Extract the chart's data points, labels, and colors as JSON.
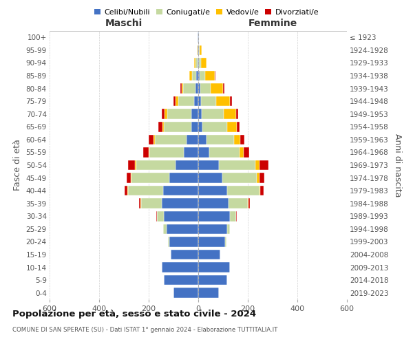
{
  "age_groups": [
    "0-4",
    "5-9",
    "10-14",
    "15-19",
    "20-24",
    "25-29",
    "30-34",
    "35-39",
    "40-44",
    "45-49",
    "50-54",
    "55-59",
    "60-64",
    "65-69",
    "70-74",
    "75-79",
    "80-84",
    "85-89",
    "90-94",
    "95-99",
    "100+"
  ],
  "birth_years": [
    "2019-2023",
    "2014-2018",
    "2009-2013",
    "2004-2008",
    "1999-2003",
    "1994-1998",
    "1989-1993",
    "1984-1988",
    "1979-1983",
    "1974-1978",
    "1969-1973",
    "1964-1968",
    "1959-1963",
    "1954-1958",
    "1949-1953",
    "1944-1948",
    "1939-1943",
    "1934-1938",
    "1929-1933",
    "1924-1928",
    "≤ 1923"
  ],
  "maschi": {
    "celibi": [
      100,
      138,
      148,
      110,
      118,
      128,
      138,
      148,
      142,
      118,
      92,
      58,
      48,
      28,
      28,
      18,
      12,
      8,
      4,
      2,
      2
    ],
    "coniugati": [
      0,
      0,
      0,
      2,
      5,
      15,
      30,
      82,
      142,
      152,
      158,
      138,
      128,
      112,
      98,
      62,
      48,
      18,
      8,
      2,
      0
    ],
    "vedovi": [
      0,
      0,
      0,
      0,
      0,
      0,
      0,
      2,
      2,
      2,
      5,
      5,
      5,
      5,
      10,
      12,
      8,
      10,
      5,
      2,
      0
    ],
    "divorziati": [
      0,
      0,
      0,
      0,
      0,
      0,
      2,
      8,
      12,
      18,
      28,
      22,
      18,
      15,
      12,
      8,
      5,
      0,
      0,
      0,
      0
    ]
  },
  "femmine": {
    "nubili": [
      82,
      118,
      128,
      88,
      108,
      118,
      128,
      122,
      118,
      98,
      82,
      44,
      32,
      18,
      15,
      10,
      8,
      6,
      4,
      3,
      2
    ],
    "coniugate": [
      0,
      0,
      0,
      2,
      5,
      10,
      25,
      78,
      128,
      138,
      148,
      122,
      112,
      98,
      88,
      62,
      42,
      22,
      8,
      2,
      0
    ],
    "vedove": [
      0,
      0,
      0,
      0,
      0,
      0,
      0,
      2,
      5,
      10,
      18,
      18,
      25,
      40,
      50,
      55,
      50,
      40,
      20,
      8,
      2
    ],
    "divorziate": [
      0,
      0,
      0,
      0,
      0,
      0,
      2,
      5,
      12,
      20,
      35,
      22,
      18,
      12,
      8,
      8,
      5,
      2,
      0,
      0,
      0
    ]
  },
  "colors": {
    "celibi": "#4472c4",
    "coniugati": "#c5d9a0",
    "vedovi": "#ffc000",
    "divorziati": "#cc0000"
  },
  "legend_labels": [
    "Celibi/Nubili",
    "Coniugati/e",
    "Vedovi/e",
    "Divorziati/e"
  ],
  "title": "Popolazione per età, sesso e stato civile - 2024",
  "subtitle": "COMUNE DI SAN SPERATE (SU) - Dati ISTAT 1° gennaio 2024 - Elaborazione TUTTITALIA.IT",
  "xlabel_maschi": "Maschi",
  "xlabel_femmine": "Femmine",
  "ylabel": "Fasce di età",
  "ylabel_right": "Anni di nascita",
  "xlim": 600,
  "background_color": "#ffffff",
  "grid_color": "#cccccc"
}
